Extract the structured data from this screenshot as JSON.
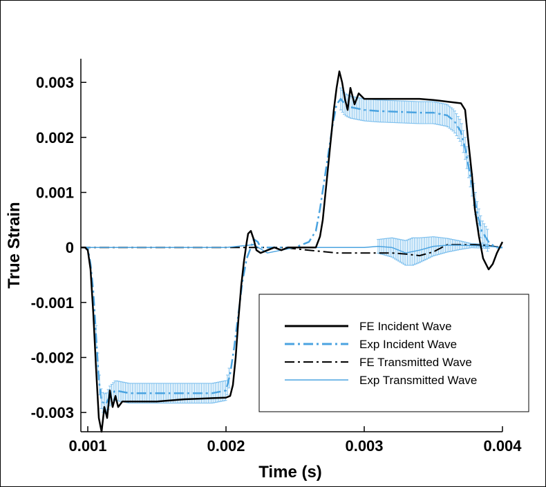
{
  "chart_data": {
    "type": "line",
    "title": "",
    "xlabel": "Time (s)",
    "ylabel": "True Strain",
    "xlim": [
      0.00095,
      0.004
    ],
    "ylim": [
      -0.00335,
      0.00343
    ],
    "xticks": [
      0.001,
      0.002,
      0.003,
      0.004
    ],
    "xtick_labels": [
      "0.001",
      "0.002",
      "0.003",
      "0.004"
    ],
    "yticks": [
      -0.003,
      -0.002,
      -0.001,
      0,
      0.001,
      0.002,
      0.003
    ],
    "ytick_labels": [
      "-0.003",
      "-0.002",
      "-0.001",
      "0",
      "0.001",
      "0.002",
      "0.003"
    ],
    "grid": false,
    "legend_position": "bottom-right",
    "series": [
      {
        "name": "FE Incident Wave",
        "color": "#000000",
        "style": "solid",
        "x": [
          0.00095,
          0.00098,
          0.001,
          0.00102,
          0.00104,
          0.00106,
          0.00108,
          0.0011,
          0.00112,
          0.00114,
          0.00116,
          0.00118,
          0.0012,
          0.00122,
          0.00125,
          0.0013,
          0.0014,
          0.0015,
          0.0016,
          0.0017,
          0.0018,
          0.0019,
          0.002,
          0.00203,
          0.00205,
          0.00207,
          0.00209,
          0.00211,
          0.00213,
          0.00215,
          0.00216,
          0.00218,
          0.0022,
          0.00222,
          0.00225,
          0.0023,
          0.00235,
          0.0024,
          0.00245,
          0.0025,
          0.0026,
          0.00265,
          0.00268,
          0.0027,
          0.00272,
          0.00274,
          0.00276,
          0.00278,
          0.0028,
          0.00282,
          0.00284,
          0.00286,
          0.00288,
          0.0029,
          0.00293,
          0.00296,
          0.003,
          0.0031,
          0.0032,
          0.0033,
          0.0034,
          0.0035,
          0.0036,
          0.0037,
          0.00373,
          0.00375,
          0.00378,
          0.0038,
          0.00383,
          0.00386,
          0.0039,
          0.00393,
          0.00396,
          0.004
        ],
        "y": [
          0,
          0,
          -5e-05,
          -0.0004,
          -0.0012,
          -0.0022,
          -0.0031,
          -0.00335,
          -0.0029,
          -0.0031,
          -0.0026,
          -0.0029,
          -0.0027,
          -0.0029,
          -0.0028,
          -0.0028,
          -0.0028,
          -0.0028,
          -0.00278,
          -0.00276,
          -0.00275,
          -0.00274,
          -0.00273,
          -0.0027,
          -0.0025,
          -0.002,
          -0.0013,
          -0.0007,
          -0.00025,
          0.0001,
          0.00025,
          0.0003,
          0.00015,
          -5e-05,
          -0.0001,
          -5e-05,
          0,
          -5e-05,
          0,
          0,
          0,
          0,
          0.0002,
          0.0005,
          0.001,
          0.0015,
          0.002,
          0.0025,
          0.0029,
          0.0032,
          0.003,
          0.0027,
          0.0025,
          0.0029,
          0.0026,
          0.0028,
          0.0027,
          0.0027,
          0.0027,
          0.0027,
          0.0027,
          0.00268,
          0.00265,
          0.00262,
          0.0025,
          0.002,
          0.0013,
          0.0007,
          0.0002,
          -0.0002,
          -0.0004,
          -0.0003,
          -0.0001,
          0.0001
        ]
      },
      {
        "name": "Exp Incident Wave",
        "color": "#4aa3e0",
        "style": "dashdot",
        "x": [
          0.00095,
          0.001,
          0.00102,
          0.00104,
          0.00106,
          0.00108,
          0.0011,
          0.00113,
          0.00116,
          0.0012,
          0.0013,
          0.0014,
          0.0015,
          0.0016,
          0.0017,
          0.0018,
          0.0019,
          0.002,
          0.00203,
          0.00206,
          0.00209,
          0.00212,
          0.00215,
          0.00218,
          0.0022,
          0.00223,
          0.00225,
          0.0023,
          0.0024,
          0.0025,
          0.0026,
          0.00265,
          0.00268,
          0.00271,
          0.00274,
          0.00277,
          0.0028,
          0.00283,
          0.00286,
          0.0029,
          0.003,
          0.0031,
          0.0032,
          0.0033,
          0.0034,
          0.0035,
          0.0036,
          0.00365,
          0.0037,
          0.00373,
          0.00376,
          0.00379,
          0.00382,
          0.00385,
          0.0039,
          0.00395,
          0.004
        ],
        "y": [
          0,
          0,
          -0.0003,
          -0.0008,
          -0.0016,
          -0.0024,
          -0.0028,
          -0.00285,
          -0.0027,
          -0.0026,
          -0.00265,
          -0.00265,
          -0.00265,
          -0.00265,
          -0.00265,
          -0.00265,
          -0.00265,
          -0.0026,
          -0.0023,
          -0.0018,
          -0.0012,
          -0.0006,
          -0.0002,
          0,
          0.00015,
          0.0001,
          0,
          0,
          0,
          0,
          0.0001,
          0.0003,
          0.0007,
          0.0012,
          0.0017,
          0.0022,
          0.0026,
          0.0027,
          0.0026,
          0.00255,
          0.0025,
          0.00248,
          0.00247,
          0.00246,
          0.00245,
          0.00245,
          0.0024,
          0.0023,
          0.0021,
          0.0018,
          0.0014,
          0.001,
          0.0006,
          0.0003,
          0.0001,
          0,
          0
        ]
      },
      {
        "name": "FE Transmitted Wave",
        "color": "#000000",
        "style": "dashdot",
        "x": [
          0.00095,
          0.0015,
          0.002,
          0.0024,
          0.0026,
          0.0028,
          0.003,
          0.0032,
          0.0033,
          0.0034,
          0.0035,
          0.0036,
          0.0037,
          0.0038,
          0.0039,
          0.004
        ],
        "y": [
          0,
          0,
          0,
          0,
          -5e-05,
          -0.0001,
          -0.0001,
          -0.0001,
          -0.00012,
          -0.00015,
          -8e-05,
          5e-05,
          5e-05,
          5e-05,
          3e-05,
          0
        ]
      },
      {
        "name": "Exp Transmitted Wave",
        "color": "#4aa3e0",
        "style": "solid",
        "x": [
          0.00095,
          0.0015,
          0.002,
          0.0022,
          0.0023,
          0.0024,
          0.0025,
          0.0026,
          0.0028,
          0.003,
          0.0031,
          0.0032,
          0.0033,
          0.0034,
          0.0035,
          0.0036,
          0.0037,
          0.0038,
          0.0039,
          0.004
        ],
        "y": [
          0,
          0,
          0,
          5e-05,
          -0.0001,
          -5e-05,
          0,
          0,
          0,
          0,
          2e-05,
          0,
          -0.0001,
          -5e-05,
          2e-05,
          4e-05,
          4e-05,
          3e-05,
          2e-05,
          0
        ]
      }
    ],
    "error_bands": [
      {
        "series": "Exp Incident Wave",
        "x_range": [
          0.00106,
          0.00203
        ],
        "half_width": 0.00018
      },
      {
        "series": "Exp Incident Wave",
        "x_range": [
          0.00283,
          0.0039
        ],
        "half_width": 0.0002
      },
      {
        "series": "Exp Transmitted Wave",
        "x_range": [
          0.0031,
          0.0039
        ],
        "half_width": 0.00025
      }
    ]
  },
  "legend": {
    "items": [
      {
        "label": "FE Incident Wave",
        "color": "#000000",
        "style": "solid"
      },
      {
        "label": "Exp Incident Wave",
        "color": "#4aa3e0",
        "style": "dashdot"
      },
      {
        "label": "FE Transmitted Wave",
        "color": "#000000",
        "style": "dashdot"
      },
      {
        "label": "Exp Transmitted Wave",
        "color": "#4aa3e0",
        "style": "solid"
      }
    ]
  }
}
